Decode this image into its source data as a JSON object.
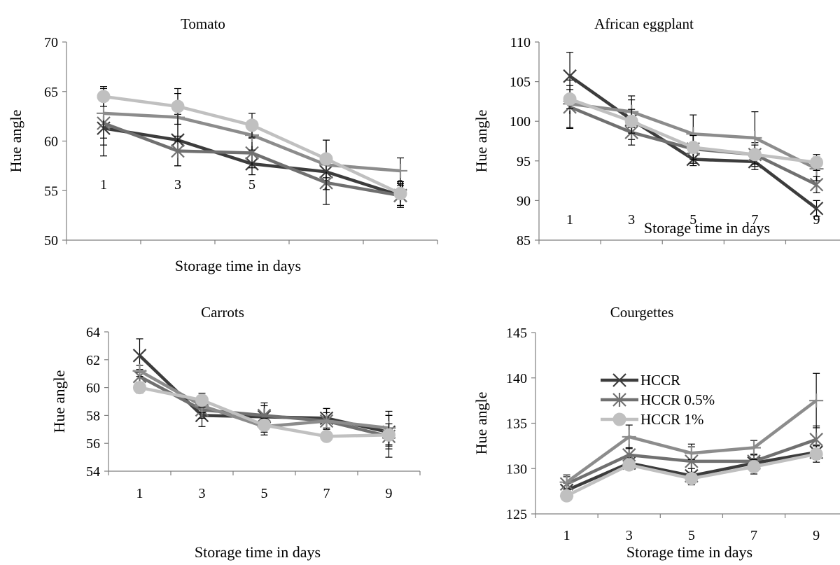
{
  "chart_data": [
    {
      "type": "line",
      "title": "Tomato",
      "xlabel": "Storage time in days",
      "ylabel": "Hue angle",
      "categories": [
        "1",
        "3",
        "5",
        "7",
        "9"
      ],
      "ylim": [
        50,
        70
      ],
      "yticks": [
        "50",
        "55",
        "60",
        "65",
        "70"
      ],
      "series": [
        {
          "values": [
            61.3,
            60.1,
            57.7,
            56.9,
            54.5
          ],
          "err": [
            2.8,
            2.6,
            1.1,
            1.0,
            1.2
          ],
          "color": "#3c3c3c",
          "marker": "x"
        },
        {
          "values": [
            61.8,
            59.0,
            58.8,
            55.8,
            54.5
          ],
          "err": [
            2.2,
            1.5,
            1.5,
            2.2,
            1.0
          ],
          "color": "#707070",
          "marker": "star"
        },
        {
          "values": [
            62.8,
            62.4,
            60.6,
            57.6,
            57.0
          ],
          "err": [
            2.5,
            2.4,
            1.5,
            2.5,
            1.3
          ],
          "color": "#8c8c8c",
          "marker": "plus"
        },
        {
          "values": [
            64.5,
            63.5,
            61.6,
            58.2,
            54.7
          ],
          "err": [
            1.0,
            1.8,
            1.2,
            1.9,
            1.2
          ],
          "color": "#c0c0c0",
          "marker": "circle"
        }
      ]
    },
    {
      "type": "line",
      "title": "African eggplant",
      "xlabel": "Storage time in days",
      "ylabel": "Hue angle",
      "categories": [
        "1",
        "3",
        "5",
        "7",
        "9"
      ],
      "ylim": [
        85,
        110
      ],
      "yticks": [
        "85",
        "90",
        "95",
        "100",
        "105",
        "110"
      ],
      "series": [
        {
          "values": [
            105.7,
            100.2,
            95.2,
            94.9,
            89.0
          ],
          "err": [
            3.0,
            2.5,
            0.8,
            1.0,
            1.0
          ],
          "color": "#3c3c3c",
          "marker": "x"
        },
        {
          "values": [
            101.8,
            98.6,
            96.5,
            95.8,
            92.0
          ],
          "err": [
            2.7,
            1.6,
            1.8,
            1.5,
            1.0
          ],
          "color": "#707070",
          "marker": "star"
        },
        {
          "values": [
            102.2,
            101.2,
            98.4,
            97.9,
            94.0
          ],
          "err": [
            3.0,
            2.0,
            2.4,
            3.3,
            1.5
          ],
          "color": "#8c8c8c",
          "marker": "plus"
        },
        {
          "values": [
            102.8,
            100.0,
            96.7,
            95.8,
            94.8
          ],
          "err": [
            1.2,
            1.5,
            1.5,
            1.2,
            1.0
          ],
          "color": "#c0c0c0",
          "marker": "circle"
        }
      ]
    },
    {
      "type": "line",
      "title": "Carrots",
      "xlabel": "Storage time in days",
      "ylabel": "Hue angle",
      "categories": [
        "1",
        "3",
        "5",
        "7",
        "9"
      ],
      "ylim": [
        54,
        64
      ],
      "yticks": [
        "54",
        "56",
        "58",
        "60",
        "62",
        "64"
      ],
      "series": [
        {
          "values": [
            62.3,
            58.0,
            57.9,
            57.8,
            56.8
          ],
          "err": [
            1.2,
            0.8,
            0.8,
            0.7,
            1.2
          ],
          "color": "#3c3c3c",
          "marker": "x"
        },
        {
          "values": [
            60.8,
            58.4,
            58.0,
            57.6,
            56.5
          ],
          "err": [
            0.5,
            0.6,
            0.9,
            0.9,
            1.5
          ],
          "color": "#707070",
          "marker": "star"
        },
        {
          "values": [
            61.2,
            58.7,
            57.2,
            57.6,
            57.1
          ],
          "err": [
            0.4,
            0.5,
            0.6,
            0.6,
            1.2
          ],
          "color": "#8c8c8c",
          "marker": "plus"
        },
        {
          "values": [
            60.0,
            59.1,
            57.3,
            56.5,
            56.6
          ],
          "err": [
            0.4,
            0.5,
            0.5,
            0.3,
            0.8
          ],
          "color": "#c0c0c0",
          "marker": "circle"
        }
      ]
    },
    {
      "type": "line",
      "title": "Courgettes",
      "xlabel": "Storage time in days",
      "ylabel": "Hue angle",
      "categories": [
        "1",
        "3",
        "5",
        "7",
        "9"
      ],
      "ylim": [
        125,
        145
      ],
      "yticks": [
        "125",
        "130",
        "135",
        "140",
        "145"
      ],
      "legend": {
        "position": "upper-left",
        "entries": [
          "HCCR",
          "HCCR 0.5%",
          "HCCR 1%"
        ],
        "series_index": [
          0,
          1,
          3
        ]
      },
      "series": [
        {
          "values": [
            127.6,
            130.6,
            129.2,
            130.6,
            131.8
          ],
          "err": [
            0.8,
            0.6,
            0.8,
            0.5,
            0.8
          ],
          "color": "#3c3c3c",
          "marker": "x"
        },
        {
          "values": [
            128.3,
            131.5,
            130.8,
            130.8,
            133.2
          ],
          "err": [
            0.8,
            0.8,
            1.9,
            0.8,
            1.5
          ],
          "color": "#707070",
          "marker": "star"
        },
        {
          "values": [
            128.5,
            133.5,
            131.7,
            132.3,
            137.5
          ],
          "err": [
            0.8,
            1.3,
            0.7,
            0.8,
            3.0
          ],
          "color": "#8c8c8c",
          "marker": "plus"
        },
        {
          "values": [
            127.0,
            130.4,
            128.9,
            130.2,
            131.6
          ],
          "err": [
            0.4,
            0.5,
            0.7,
            0.8,
            0.9
          ],
          "color": "#c0c0c0",
          "marker": "circle"
        }
      ]
    }
  ]
}
